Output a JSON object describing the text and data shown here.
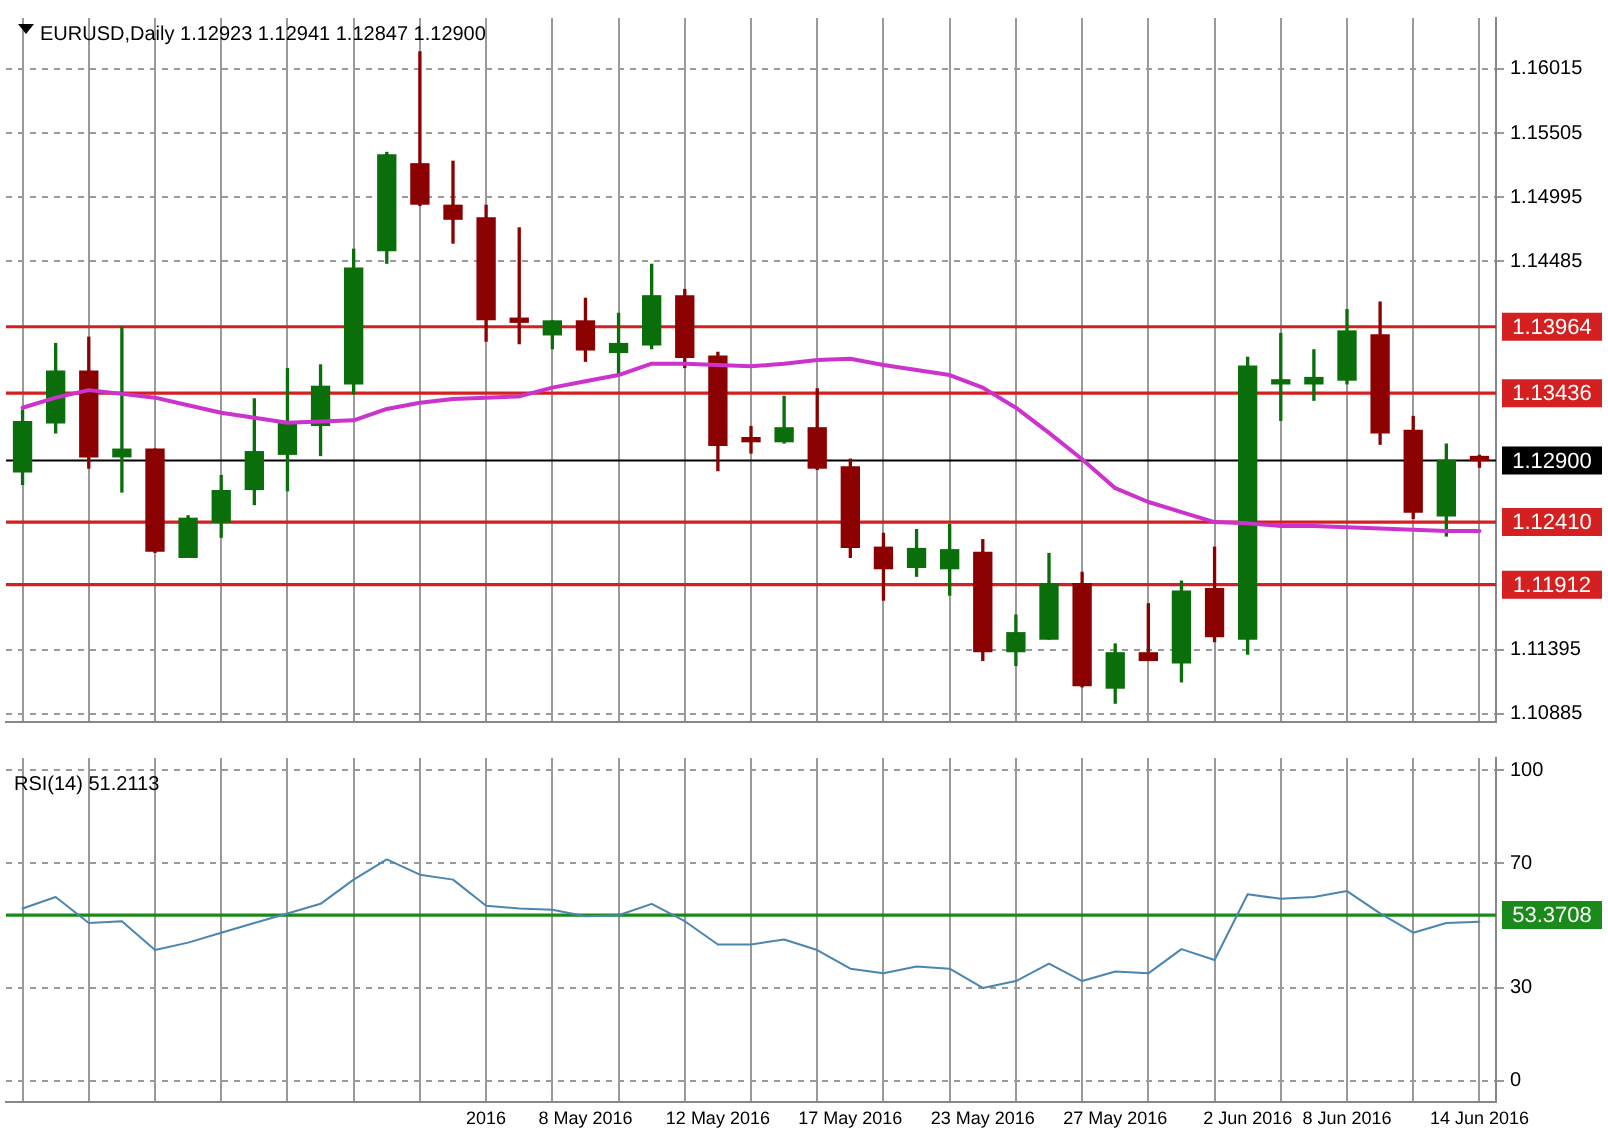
{
  "chart_data": [
    {
      "type": "candlestick",
      "title": "EURUSD,Daily 1.12923 1.12941 1.12847 1.12900",
      "categories": [
        null,
        null,
        null,
        null,
        null,
        null,
        null,
        null,
        null,
        null,
        null,
        null,
        null,
        null,
        null,
        null,
        null,
        null,
        null,
        null,
        null,
        null,
        null,
        null,
        null,
        null,
        null,
        null,
        null,
        null,
        null,
        null,
        null,
        null,
        null,
        null,
        null,
        null,
        null,
        null,
        null,
        null,
        null,
        null,
        null
      ],
      "ohlc": [
        [
          1.1281,
          1.133,
          1.1271,
          1.1321
        ],
        [
          1.132,
          1.1383,
          1.1312,
          1.1361
        ],
        [
          1.1361,
          1.1388,
          1.1284,
          1.1293
        ],
        [
          1.1293,
          1.1396,
          1.1265,
          1.1299
        ],
        [
          1.1299,
          1.1299,
          1.1217,
          1.1218
        ],
        [
          1.1213,
          1.1246,
          1.1213,
          1.1244
        ],
        [
          1.1241,
          1.1278,
          1.1229,
          1.1266
        ],
        [
          1.1267,
          1.1339,
          1.1255,
          1.1297
        ],
        [
          1.1295,
          1.1363,
          1.1266,
          1.132
        ],
        [
          1.1318,
          1.1366,
          1.1294,
          1.1349
        ],
        [
          1.1351,
          1.1458,
          1.1343,
          1.1443
        ],
        [
          1.1457,
          1.1535,
          1.1447,
          1.1533
        ],
        [
          1.1526,
          1.1615,
          1.1493,
          1.1494
        ],
        [
          1.1493,
          1.1528,
          1.1463,
          1.1482
        ],
        [
          1.1483,
          1.1493,
          1.1385,
          1.1402
        ],
        [
          1.1402,
          1.1475,
          1.1383,
          1.14
        ],
        [
          1.139,
          1.1401,
          1.1379,
          1.1401
        ],
        [
          1.1401,
          1.1419,
          1.1369,
          1.1378
        ],
        [
          1.1376,
          1.1407,
          1.1359,
          1.1383
        ],
        [
          1.1382,
          1.1446,
          1.1379,
          1.1421
        ],
        [
          1.1421,
          1.1426,
          1.1364,
          1.1372
        ],
        [
          1.1373,
          1.1376,
          1.1282,
          1.1302
        ],
        [
          1.1307,
          1.1317,
          1.1296,
          1.1305
        ],
        [
          1.1305,
          1.1341,
          1.1304,
          1.1316
        ],
        [
          1.1316,
          1.1347,
          1.1283,
          1.1284
        ],
        [
          1.1285,
          1.1291,
          1.1213,
          1.1221
        ],
        [
          1.1221,
          1.1232,
          1.1179,
          1.1204
        ],
        [
          1.1205,
          1.1235,
          1.1198,
          1.122
        ],
        [
          1.1204,
          1.1239,
          1.1183,
          1.1219
        ],
        [
          1.1217,
          1.1227,
          1.1131,
          1.1138
        ],
        [
          1.1138,
          1.1167,
          1.1127,
          1.1153
        ],
        [
          1.1148,
          1.1216,
          1.1148,
          1.1192
        ],
        [
          1.1192,
          1.1201,
          1.111,
          1.1111
        ],
        [
          1.1109,
          1.1144,
          1.1097,
          1.1137
        ],
        [
          1.1137,
          1.1176,
          1.1131,
          1.1131
        ],
        [
          1.1129,
          1.1194,
          1.1114,
          1.1186
        ],
        [
          1.1188,
          1.1221,
          1.1146,
          1.115
        ],
        [
          1.1148,
          1.1372,
          1.1136,
          1.1365
        ],
        [
          1.1351,
          1.1391,
          1.1322,
          1.1353
        ],
        [
          1.1351,
          1.1378,
          1.1338,
          1.1356
        ],
        [
          1.1354,
          1.141,
          1.1351,
          1.1393
        ],
        [
          1.139,
          1.1416,
          1.1303,
          1.1312
        ],
        [
          1.1314,
          1.1325,
          1.1244,
          1.1249
        ],
        [
          1.1246,
          1.1303,
          1.123,
          1.129
        ],
        [
          1.12923,
          1.12941,
          1.12847,
          1.129
        ]
      ],
      "colors": [
        "#0a6e0a",
        "#0a6e0a",
        "#8b0000",
        "#0a6e0a",
        "#8b0000",
        "#0a6e0a",
        "#0a6e0a",
        "#0a6e0a",
        "#0a6e0a",
        "#0a6e0a",
        "#0a6e0a",
        "#0a6e0a",
        "#8b0000",
        "#8b0000",
        "#8b0000",
        "#8b0000",
        "#0a6e0a",
        "#8b0000",
        "#0a6e0a",
        "#0a6e0a",
        "#8b0000",
        "#8b0000",
        "#8b0000",
        "#0a6e0a",
        "#8b0000",
        "#8b0000",
        "#8b0000",
        "#0a6e0a",
        "#0a6e0a",
        "#8b0000",
        "#0a6e0a",
        "#0a6e0a",
        "#8b0000",
        "#0a6e0a",
        "#8b0000",
        "#0a6e0a",
        "#8b0000",
        "#0a6e0a",
        "#0a6e0a",
        "#0a6e0a",
        "#0a6e0a",
        "#8b0000",
        "#8b0000",
        "#0a6e0a",
        "#8b0000"
      ],
      "series": [
        {
          "type": "line",
          "color": "#cc33cc",
          "values": [
            1.1332,
            1.134,
            1.1346,
            1.1343,
            1.134,
            1.1334,
            1.1328,
            1.1324,
            1.132,
            1.1321,
            1.1322,
            1.1331,
            1.1336,
            1.1339,
            1.134,
            1.1341,
            1.1348,
            1.1353,
            1.1358,
            1.1367,
            1.1367,
            1.1366,
            1.1365,
            1.1367,
            1.137,
            1.1371,
            1.1366,
            1.1362,
            1.1358,
            1.1348,
            1.1332,
            1.1312,
            1.1291,
            1.1268,
            1.1257,
            1.1249,
            1.1241,
            1.124,
            1.1238,
            1.1238,
            1.1237,
            1.1236,
            1.1235,
            1.1234,
            1.1234
          ]
        }
      ],
      "ylim": [
        1.1082,
        1.1642
      ],
      "yticks": [
        1.10885,
        1.11395,
        1.14485,
        1.14995,
        1.15505,
        1.16015
      ],
      "ref_lines": [
        {
          "axis": "y",
          "value": 1.13964,
          "label": "1.13964",
          "color": "#d42020"
        },
        {
          "axis": "y",
          "value": 1.13436,
          "label": "1.13436",
          "color": "#d42020"
        },
        {
          "axis": "y",
          "value": 1.129,
          "label": "1.12900",
          "color": "#000000"
        },
        {
          "axis": "y",
          "value": 1.1241,
          "label": "1.12410",
          "color": "#d42020"
        },
        {
          "axis": "y",
          "value": 1.11912,
          "label": "1.11912",
          "color": "#d42020"
        }
      ],
      "grid": true,
      "marker": "none",
      "tick_labels": "y"
    },
    {
      "type": "line",
      "title": "RSI(14) 51.2113",
      "categories": [
        null,
        null,
        null,
        null,
        null,
        null,
        null,
        null,
        null,
        null,
        null,
        null,
        null,
        null,
        "2016",
        null,
        null,
        "8 May 2016",
        null,
        null,
        null,
        "12 May 2016",
        null,
        null,
        null,
        "17 May 2016",
        null,
        null,
        null,
        "23 May 2016",
        null,
        null,
        null,
        "27 May 2016",
        null,
        null,
        null,
        "2 Jun 2016",
        null,
        null,
        "8 Jun 2016",
        null,
        null,
        null,
        "14 Jun 2016"
      ],
      "series": [
        {
          "color": "#4a86b0",
          "values": [
            55.5,
            59.2,
            50.8,
            51.4,
            42.1,
            44.5,
            47.7,
            50.8,
            53.9,
            57.0,
            64.8,
            71.3,
            66.4,
            64.8,
            56.4,
            55.5,
            55.1,
            53.0,
            53.3,
            57.0,
            51.4,
            43.9,
            43.9,
            45.5,
            42.1,
            36.1,
            34.6,
            36.8,
            36.1,
            29.9,
            32.1,
            37.7,
            32.1,
            35.2,
            34.6,
            42.4,
            38.9,
            60.1,
            58.6,
            59.2,
            61.1,
            53.9,
            47.7,
            50.8,
            51.2
          ]
        }
      ],
      "ylim": [
        -7,
        104
      ],
      "yticks": [
        0,
        30,
        70,
        100
      ],
      "ref_lines": [
        {
          "axis": "y",
          "value": 53.3708,
          "label": "53.3708",
          "color": "#1a8a1a"
        }
      ],
      "grid": true,
      "marker": "none"
    }
  ]
}
